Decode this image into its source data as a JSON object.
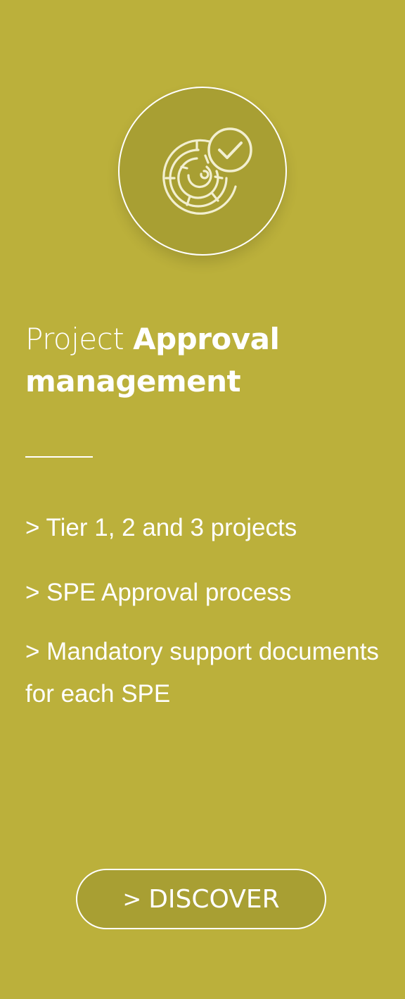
{
  "card": {
    "icon": "maze-with-checkmark-icon",
    "title_light": "Project ",
    "title_bold": "Approval management",
    "features": [
      "> Tier 1, 2 and 3 projects",
      "> SPE Approval process",
      "> Mandatory support documents for each SPE"
    ],
    "button": {
      "chevron": ">",
      "label": "DISCOVER"
    }
  },
  "colors": {
    "background": "#bbb03b",
    "circle_fill": "#a89f33",
    "foreground": "#ffffff"
  }
}
